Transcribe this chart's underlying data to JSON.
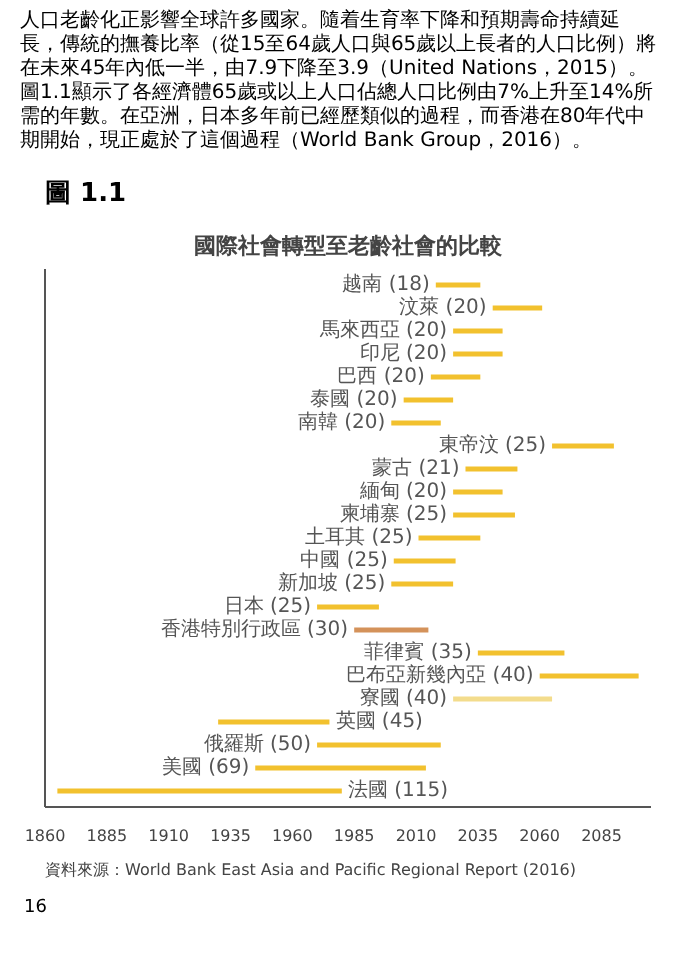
{
  "chart_data": {
    "type": "bar",
    "orientation": "horizontal",
    "subtitle": "圖 1.1",
    "title": "國際社會轉型至老齡社會的比較",
    "categories": [
      "越南 (18)",
      "汶萊 (20)",
      "馬來西亞 (20)",
      "印尼 (20)",
      "巴西 (20)",
      "泰國 (20)",
      "南韓 (20)",
      "東帝汶 (25)",
      "蒙古 (21)",
      "緬甸 (20)",
      "柬埔寨 (25)",
      "土耳其 (25)",
      "中國 (25)",
      "新加坡 (25)",
      "日本 (25)",
      "香港特別行政區 (30)",
      "菲律賓 (35)",
      "巴布亞新幾內亞 (40)",
      "寮國 (40)",
      "英國 (45)",
      "俄羅斯 (50)",
      "美國 (69)",
      "法國 (115)"
    ],
    "base": [
      2018,
      2041,
      2025,
      2025,
      2016,
      2005,
      2000,
      2065,
      2030,
      2025,
      2025,
      2011,
      2001,
      2000,
      1970,
      1985,
      2035,
      2060,
      2025,
      1930,
      1970,
      1945,
      1865
    ],
    "values": [
      18,
      20,
      20,
      20,
      20,
      20,
      20,
      25,
      21,
      20,
      25,
      25,
      25,
      25,
      25,
      30,
      35,
      40,
      40,
      45,
      50,
      69,
      115
    ],
    "colors": [
      "#f2c12e",
      "#f2c12e",
      "#f2c12e",
      "#f2c12e",
      "#f2c12e",
      "#f2c12e",
      "#f2c12e",
      "#f2c12e",
      "#f2c12e",
      "#f2c12e",
      "#f2c12e",
      "#f2c12e",
      "#f2c12e",
      "#f2c12e",
      "#f2c12e",
      "#d4925a",
      "#f2c12e",
      "#f2c12e",
      "#f3dc8c",
      "#f2c12e",
      "#f2c12e",
      "#f2c12e",
      "#f2c12e"
    ],
    "xlim": [
      1860,
      2105
    ],
    "xticks": [
      1860,
      1885,
      1910,
      1935,
      1960,
      1985,
      2010,
      2035,
      2060,
      2085
    ],
    "tick_labels": "x",
    "grid": false,
    "annotations": [
      "人口老齡化正影響全球許多國家。隨着生育率下降和預期壽命持續延長，傳統的撫養比率（從15至64歲人口與65歲以上長者的人口比例）將在未來45年內低一半，由7.9下降至3.9（United Nations，2015）。圖1.1顯示了各經濟體65歲或以上人口佔總人口比例由7%上升至14%所需的年數。在亞洲，日本多年前已經歷類似的過程，而香港在80年代中期開始，現正處於了這個過程（World Bank Group，2016）。",
      "資料來源：World Bank East Asia and Pacific Regional Report (2016)",
      "16"
    ]
  }
}
